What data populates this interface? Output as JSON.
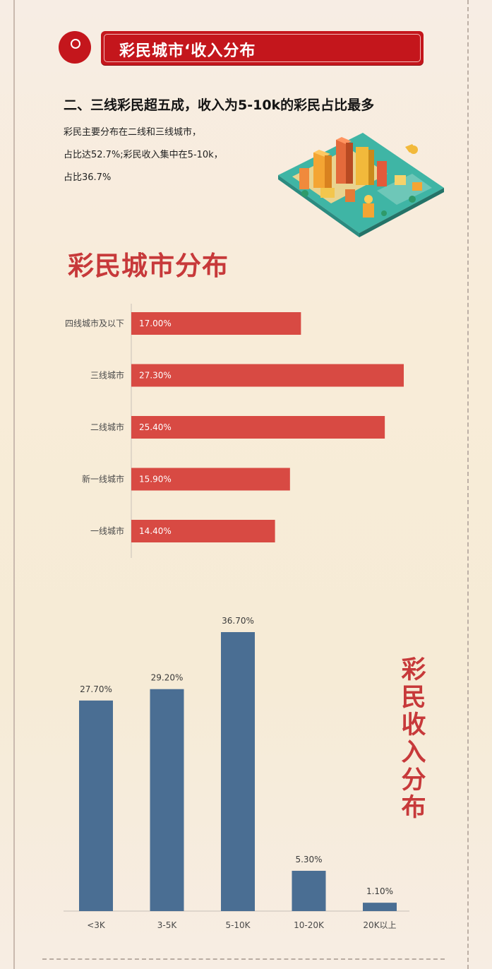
{
  "header": {
    "banner_title": "彩民城市‘收入分布",
    "subtitle": "二、三线彩民超五成，收入为5-10k的彩民占比最多",
    "desc_lines": [
      "彩民主要分布在二线和三线城市，",
      "占比达52.7%;彩民收入集中在5-10k，",
      "占比36.7%"
    ]
  },
  "colors": {
    "brand_red": "#c4161c",
    "bar_red": "#d84a43",
    "bar_blue": "#4a6e93",
    "title_red": "#c7393a"
  },
  "chart_data": [
    {
      "type": "bar",
      "orientation": "horizontal",
      "title": "彩民城市分布",
      "categories": [
        "四线城市及以下",
        "三线城市",
        "二线城市",
        "新一线城市",
        "一线城市"
      ],
      "values": [
        17.0,
        27.3,
        25.4,
        15.9,
        14.4
      ],
      "labels": [
        "17.00%",
        "27.30%",
        "25.40%",
        "15.90%",
        "14.40%"
      ],
      "unit": "%",
      "xlim": [
        0,
        30
      ]
    },
    {
      "type": "bar",
      "orientation": "vertical",
      "title": "彩民收入分布",
      "categories": [
        "<3K",
        "3-5K",
        "5-10K",
        "10-20K",
        "20K以上"
      ],
      "values": [
        27.7,
        29.2,
        36.7,
        5.3,
        1.1
      ],
      "labels": [
        "27.70%",
        "29.20%",
        "36.70%",
        "5.30%",
        "1.10%"
      ],
      "unit": "%",
      "ylim": [
        0,
        40
      ]
    }
  ]
}
